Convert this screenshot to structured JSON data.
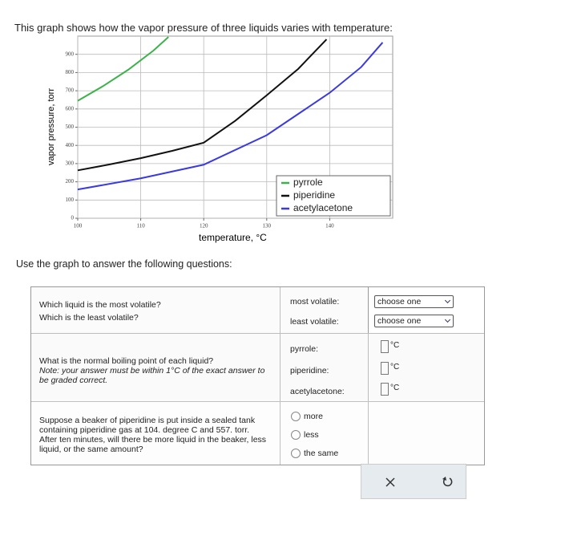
{
  "header": {
    "title": "This graph shows how the vapor pressure of three liquids varies with temperature:"
  },
  "chart_data": {
    "type": "line",
    "x_label": "temperature, °C",
    "y_label": "vapor pressure, torr",
    "xlim": [
      100,
      150
    ],
    "ylim": [
      0,
      1000
    ],
    "xticks": [
      100,
      110,
      120,
      130,
      140
    ],
    "yticks": [
      0,
      100,
      200,
      300,
      400,
      500,
      600,
      700,
      800,
      900
    ],
    "grid": true,
    "legend": "lower right",
    "series": [
      {
        "name": "pyrrole",
        "color": "#3cb34a",
        "x": [
          100,
          104,
          108,
          112,
          114.4
        ],
        "values": [
          645,
          725,
          815,
          920,
          995
        ]
      },
      {
        "name": "piperidine",
        "color": "#111111",
        "x": [
          100,
          105,
          110,
          115,
          120,
          125,
          130,
          135,
          139.5
        ],
        "values": [
          263,
          295,
          330,
          370,
          415,
          535,
          675,
          820,
          982
        ]
      },
      {
        "name": "acetylacetone",
        "color": "#3a3ae0",
        "x": [
          100,
          110,
          120,
          130,
          140,
          145,
          148.4
        ],
        "values": [
          158,
          219,
          294,
          456,
          689,
          830,
          965
        ]
      }
    ]
  },
  "instructions": "Use the graph to answer the following questions:",
  "questions": [
    {
      "prompt": [
        "Which liquid is the most volatile?",
        "Which is the least volatile?"
      ],
      "fields": [
        {
          "label": "most volatile:",
          "select": "choose one"
        },
        {
          "label": "least volatile:",
          "select": "choose one"
        }
      ]
    },
    {
      "prompt": "What is the normal boiling point of each liquid?",
      "note": "Note: your answer must be within 1°C of the exact answer to be graded correct.",
      "fields": [
        {
          "label": "pyrrole:",
          "unit": "°C"
        },
        {
          "label": "piperidine:",
          "unit": "°C"
        },
        {
          "label": "acetylacetone:",
          "unit": "°C"
        }
      ]
    },
    {
      "prompt": "Suppose a beaker of piperidine is put inside a sealed tank containing piperidine gas at 104. degree C and 557. torr. After ten minutes, will there be more liquid in the beaker, less liquid, or the same amount?",
      "options": [
        "more",
        "less",
        "the same"
      ]
    }
  ]
}
